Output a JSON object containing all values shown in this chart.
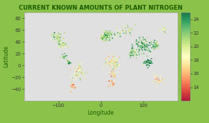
{
  "title": "CURRENT KNOWN AMOUNTS OF PLANT NITROGEN",
  "xlabel": "Longitude",
  "ylabel": "Latitude",
  "background_color": "#8bc34a",
  "map_facecolor": "#f5f5f5",
  "land_color": "#e0e0e0",
  "border_color": "#555555",
  "colormap": "RdYlGn",
  "cbar_min": 12,
  "cbar_max": 25,
  "cbar_ticks": [
    14,
    16,
    18,
    20,
    22,
    24
  ],
  "title_color": "#1a5c00",
  "axis_label_color": "#1a5c00",
  "tick_label_color": "#333333",
  "xlim": [
    -180,
    180
  ],
  "ylim": [
    -60,
    90
  ],
  "xticks": [
    -100,
    0,
    100
  ],
  "yticks": [
    -40,
    -20,
    0,
    20,
    40,
    60,
    80
  ],
  "title_fontsize": 6.0,
  "axis_label_fontsize": 5.5,
  "tick_fontsize": 4.8,
  "seed": 42,
  "regions": [
    [
      -100,
      48,
      20,
      12,
      40,
      21
    ],
    [
      -90,
      35,
      15,
      10,
      35,
      20
    ],
    [
      -75,
      5,
      5,
      5,
      12,
      23
    ],
    [
      -85,
      15,
      8,
      6,
      15,
      22
    ],
    [
      15,
      50,
      20,
      10,
      65,
      22
    ],
    [
      5,
      48,
      8,
      8,
      25,
      21
    ],
    [
      100,
      35,
      25,
      18,
      80,
      23
    ],
    [
      75,
      20,
      15,
      12,
      40,
      22
    ],
    [
      128,
      35,
      10,
      8,
      30,
      21
    ],
    [
      110,
      5,
      15,
      8,
      35,
      24
    ],
    [
      25,
      5,
      20,
      18,
      50,
      18
    ],
    [
      30,
      -15,
      10,
      10,
      20,
      17
    ],
    [
      35,
      5,
      10,
      10,
      20,
      19
    ],
    [
      -55,
      -12,
      20,
      18,
      55,
      19
    ],
    [
      -65,
      -35,
      10,
      8,
      18,
      16
    ],
    [
      133,
      -25,
      20,
      13,
      28,
      17
    ],
    [
      60,
      60,
      28,
      12,
      22,
      20
    ],
    [
      45,
      55,
      20,
      10,
      15,
      21
    ],
    [
      150,
      60,
      15,
      10,
      12,
      20
    ],
    [
      25,
      -30,
      10,
      8,
      15,
      16
    ]
  ]
}
